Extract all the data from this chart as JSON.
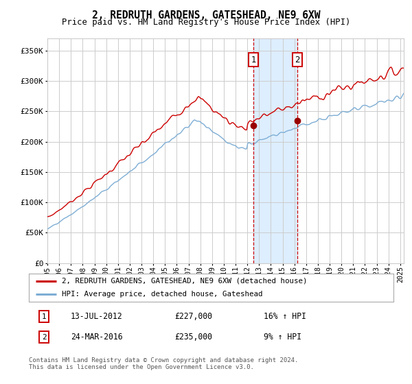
{
  "title": "2, REDRUTH GARDENS, GATESHEAD, NE9 6XW",
  "subtitle": "Price paid vs. HM Land Registry's House Price Index (HPI)",
  "sale1_date": "13-JUL-2012",
  "sale1_price": 227000,
  "sale1_hpi": "16% ↑ HPI",
  "sale1_x": 2012.54,
  "sale2_date": "24-MAR-2016",
  "sale2_price": 235000,
  "sale2_hpi": "9% ↑ HPI",
  "sale2_x": 2016.23,
  "ylabel_ticks": [
    "£0",
    "£50K",
    "£100K",
    "£150K",
    "£200K",
    "£250K",
    "£300K",
    "£350K"
  ],
  "ytick_vals": [
    0,
    50000,
    100000,
    150000,
    200000,
    250000,
    300000,
    350000
  ],
  "xmin": 1995.0,
  "xmax": 2025.3,
  "ymin": 0,
  "ymax": 370000,
  "legend_line1": "2, REDRUTH GARDENS, GATESHEAD, NE9 6XW (detached house)",
  "legend_line2": "HPI: Average price, detached house, Gateshead",
  "footer": "Contains HM Land Registry data © Crown copyright and database right 2024.\nThis data is licensed under the Open Government Licence v3.0.",
  "line_color_red": "#cc0000",
  "line_color_blue": "#7dadd4",
  "shade_color": "#ddeeff",
  "grid_color": "#cccccc",
  "bg_color": "#ffffff"
}
